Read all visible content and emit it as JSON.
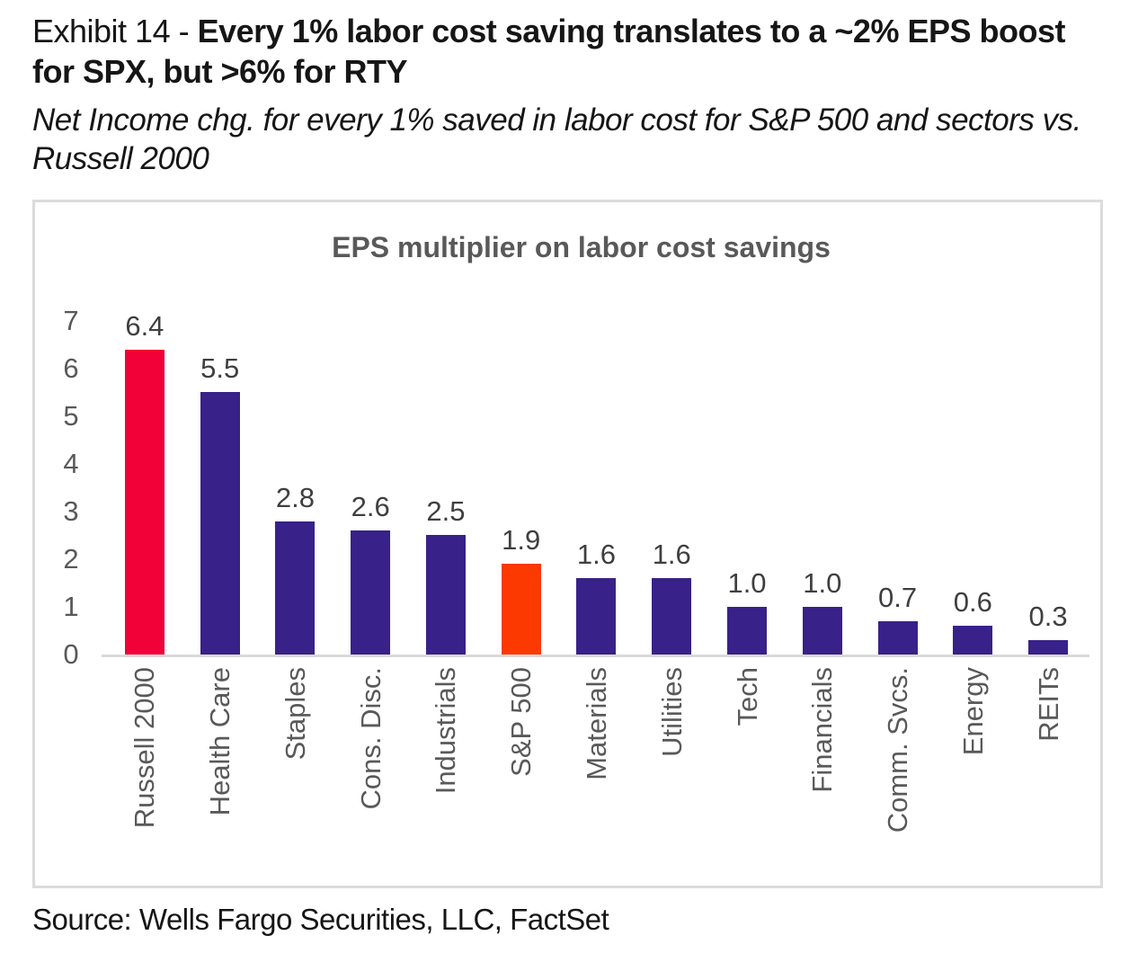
{
  "header": {
    "exhibit_label": "Exhibit 14 - ",
    "title_bold": "Every 1% labor cost saving translates to a ~2% EPS boost for SPX, but >6% for RTY",
    "subtitle": "Net Income chg. for every 1% saved in labor cost for S&P 500 and sectors vs. Russell 2000"
  },
  "chart_data": {
    "type": "bar",
    "title": "EPS multiplier on labor cost savings",
    "categories": [
      "Russell 2000",
      "Health Care",
      "Staples",
      "Cons. Disc.",
      "Industrials",
      "S&P 500",
      "Materials",
      "Utilities",
      "Tech",
      "Financials",
      "Comm. Svcs.",
      "Energy",
      "REITs"
    ],
    "values": [
      6.4,
      5.5,
      2.8,
      2.6,
      2.5,
      1.9,
      1.6,
      1.6,
      1.0,
      1.0,
      0.7,
      0.6,
      0.3
    ],
    "value_labels": [
      "6.4",
      "5.5",
      "2.8",
      "2.6",
      "2.5",
      "1.9",
      "1.6",
      "1.6",
      "1.0",
      "1.0",
      "0.7",
      "0.6",
      "0.3"
    ],
    "bar_colors": [
      "#F20038",
      "#382189",
      "#382189",
      "#382189",
      "#382189",
      "#FD3902",
      "#382189",
      "#382189",
      "#382189",
      "#382189",
      "#382189",
      "#382189",
      "#382189"
    ],
    "y_ticks": [
      7,
      6,
      5,
      4,
      3,
      2,
      1,
      0
    ],
    "ylim": [
      0,
      7
    ],
    "xlabel": "",
    "ylabel": "",
    "grid": false,
    "legend": "none",
    "colors": {
      "russell_2000_highlight": "#F20038",
      "sp500_highlight": "#FD3902",
      "sector_default": "#382189",
      "axis_text": "#595959",
      "value_label_text": "#3F3F3F",
      "baseline": "#D9D9D9",
      "panel_border": "#DBDBDB"
    }
  },
  "footer": {
    "source": "Source: Wells Fargo Securities, LLC, FactSet"
  }
}
